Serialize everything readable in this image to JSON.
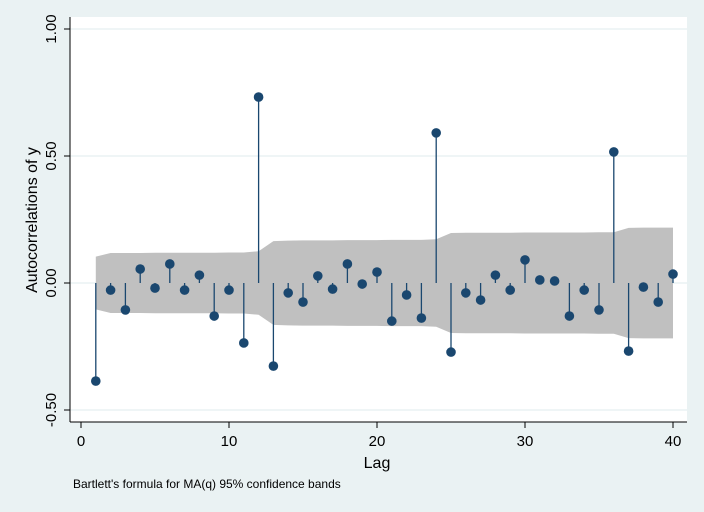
{
  "chart_data": {
    "type": "stem",
    "ylabel": "Autocorrelations of y",
    "xlabel": "Lag",
    "note": "Bartlett's formula for MA(q) 95% confidence bands",
    "xlim": [
      0,
      40
    ],
    "ylim": [
      -0.5,
      1.0
    ],
    "xticks": [
      0,
      10,
      20,
      30,
      40
    ],
    "xtick_labels": [
      "0",
      "10",
      "20",
      "30",
      "40"
    ],
    "yticks": [
      -0.5,
      0,
      0.5,
      1.0
    ],
    "ytick_labels": [
      "-0.50",
      "0.00",
      "0.50",
      "1.00"
    ],
    "grid": "horizontal",
    "lags": [
      1,
      2,
      3,
      4,
      5,
      6,
      7,
      8,
      9,
      10,
      11,
      12,
      13,
      14,
      15,
      16,
      17,
      18,
      19,
      20,
      21,
      22,
      23,
      24,
      25,
      26,
      27,
      28,
      29,
      30,
      31,
      32,
      33,
      34,
      35,
      36,
      37,
      38,
      39,
      40
    ],
    "values": [
      -0.386,
      -0.028,
      -0.106,
      0.055,
      -0.02,
      0.075,
      -0.028,
      0.031,
      -0.13,
      -0.028,
      -0.236,
      0.732,
      -0.327,
      -0.039,
      -0.075,
      0.028,
      -0.024,
      0.075,
      -0.004,
      0.043,
      -0.15,
      -0.047,
      -0.138,
      0.591,
      -0.272,
      -0.039,
      -0.067,
      0.031,
      -0.028,
      0.091,
      0.012,
      0.008,
      -0.13,
      -0.028,
      -0.106,
      0.516,
      -0.268,
      -0.016,
      -0.075,
      0.035
    ],
    "confidence_band": [
      0.104,
      0.118,
      0.118,
      0.118,
      0.119,
      0.119,
      0.119,
      0.119,
      0.119,
      0.12,
      0.12,
      0.125,
      0.165,
      0.167,
      0.168,
      0.168,
      0.168,
      0.169,
      0.169,
      0.169,
      0.17,
      0.17,
      0.17,
      0.172,
      0.197,
      0.198,
      0.198,
      0.198,
      0.198,
      0.199,
      0.199,
      0.199,
      0.199,
      0.199,
      0.2,
      0.2,
      0.217,
      0.218,
      0.218,
      0.218
    ],
    "colors": {
      "marker": "#1a476f",
      "band": "#c0c0c0",
      "background": "#eaf2f3",
      "plot": "#ffffff",
      "grid": "#eaf2f3"
    }
  }
}
